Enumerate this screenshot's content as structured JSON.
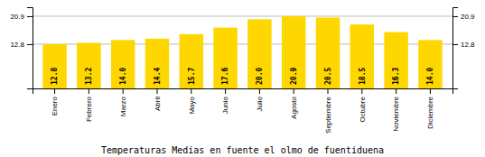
{
  "chart_data": {
    "type": "bar",
    "title": "Temperaturas Medias en fuente el olmo de fuentiduena",
    "categories": [
      "Enero",
      "Febrero",
      "Marzo",
      "Abril",
      "Mayo",
      "Junio",
      "Julio",
      "Agosto",
      "Septiembre",
      "Octubre",
      "Noviembre",
      "Diciembre"
    ],
    "values": [
      12.8,
      13.2,
      14.0,
      14.4,
      15.7,
      17.6,
      20.0,
      20.9,
      20.5,
      18.5,
      16.3,
      14.0
    ],
    "value_labels": [
      "12.8",
      "13.2",
      "14.0",
      "14.4",
      "15.7",
      "17.6",
      "20.0",
      "20.9",
      "20.5",
      "18.5",
      "16.3",
      "14.0"
    ],
    "color": "#FFD700",
    "ylim": [
      0,
      23.5
    ],
    "yticks": [
      12.8,
      20.9
    ],
    "y2lim": [
      0,
      23.5
    ],
    "y2ticks": [
      12.8,
      20.9
    ],
    "grid": true,
    "data_labels": true
  }
}
